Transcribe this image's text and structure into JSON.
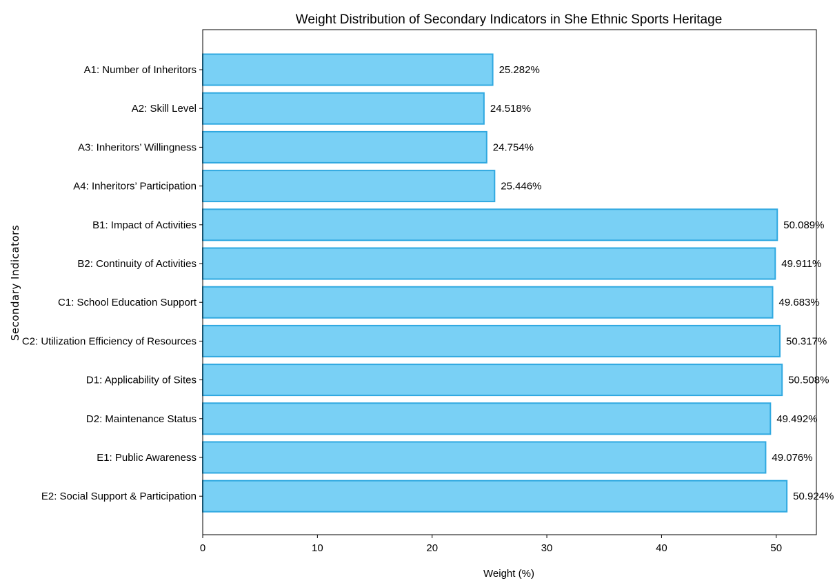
{
  "chart_data": {
    "type": "bar",
    "orientation": "horizontal",
    "title": "Weight Distribution of Secondary Indicators in She Ethnic Sports Heritage",
    "xlabel": "Weight (%)",
    "ylabel": "Secondary Indicators",
    "xlim": [
      0,
      53.5
    ],
    "xticks": [
      0,
      10,
      20,
      30,
      40,
      50
    ],
    "grid": false,
    "categories": [
      "A1: Number of Inheritors",
      "A2: Skill Level",
      "A3: Inheritors’ Willingness",
      "A4: Inheritors’ Participation",
      "B1: Impact of Activities",
      "B2: Continuity of Activities",
      "C1: School Education Support",
      "C2: Utilization Efficiency of Resources",
      "D1: Applicability of Sites",
      "D2: Maintenance Status",
      "E1: Public Awareness",
      "E2: Social Support & Participation"
    ],
    "values": [
      25.282,
      24.518,
      24.754,
      25.446,
      50.089,
      49.911,
      49.683,
      50.317,
      50.508,
      49.492,
      49.076,
      50.924
    ],
    "value_labels": [
      "25.282%",
      "24.518%",
      "24.754%",
      "25.446%",
      "50.089%",
      "49.911%",
      "49.683%",
      "50.317%",
      "50.508%",
      "49.492%",
      "49.076%",
      "50.924%"
    ],
    "bar_color": "#79d0f5",
    "bar_edge_color": "#2fa8e0"
  }
}
